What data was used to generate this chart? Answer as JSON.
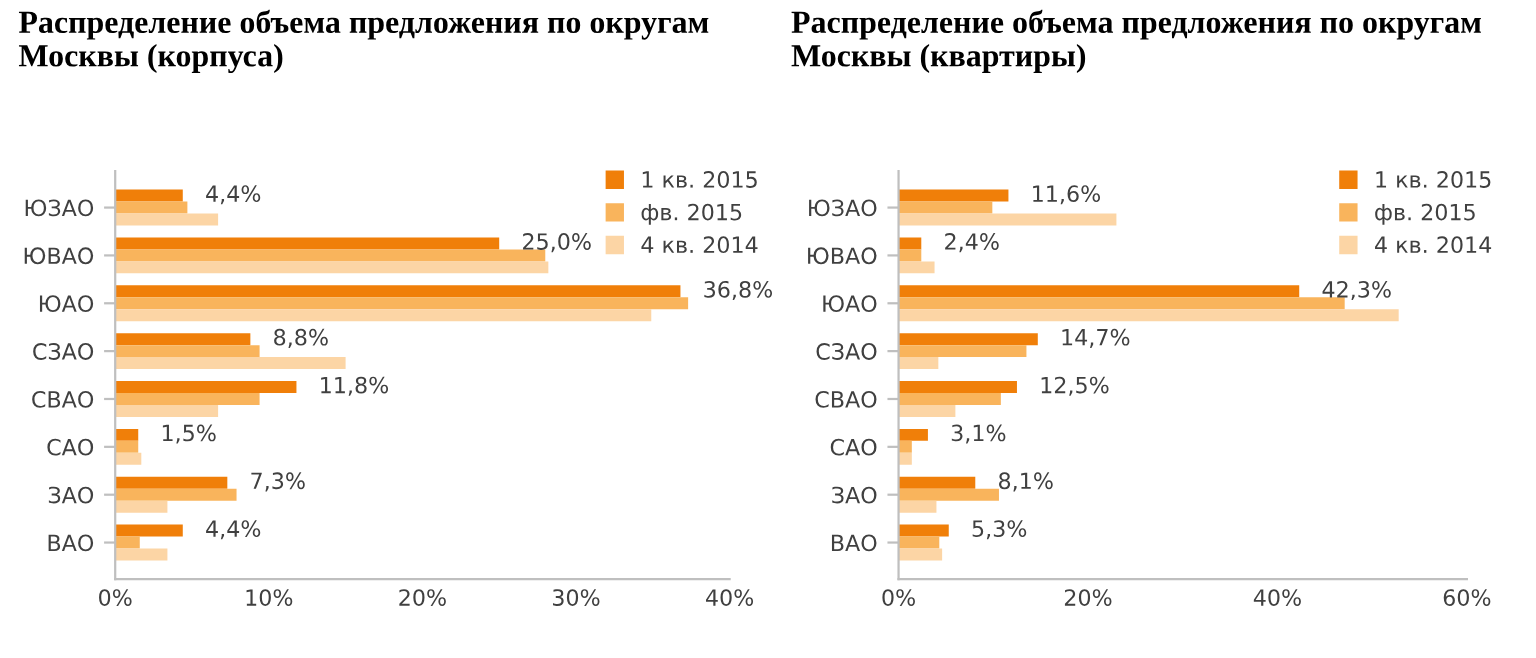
{
  "chart_data": [
    {
      "type": "bar",
      "orientation": "horizontal",
      "title": "Распределение объема предложения по округам Москвы (корпуса)",
      "categories": [
        "ЮЗАО",
        "ЮВАО",
        "ЮАО",
        "СЗАО",
        "СВАО",
        "САО",
        "ЗАО",
        "ВАО"
      ],
      "series": [
        {
          "name": "1 кв. 2015",
          "color": "#f07f09",
          "values": [
            4.4,
            25.0,
            36.8,
            8.8,
            11.8,
            1.5,
            7.3,
            4.4
          ],
          "value_labels": [
            "4,4%",
            "25,0%",
            "36,8%",
            "8,8%",
            "11,8%",
            "1,5%",
            "7,3%",
            "4,4%"
          ]
        },
        {
          "name": "фв. 2015",
          "color": "#f9b45c",
          "values": [
            4.7,
            28.0,
            37.3,
            9.4,
            9.4,
            1.5,
            7.9,
            1.6
          ]
        },
        {
          "name": "4 кв. 2014",
          "color": "#fcd5a5",
          "values": [
            6.7,
            28.2,
            34.9,
            15.0,
            6.7,
            1.7,
            3.4,
            3.4
          ]
        }
      ],
      "xlim": [
        0,
        40
      ],
      "xticks": [
        {
          "value": 0,
          "label": "0%"
        },
        {
          "value": 10,
          "label": "10%"
        },
        {
          "value": 20,
          "label": "20%"
        },
        {
          "value": 30,
          "label": "30%"
        },
        {
          "value": 40,
          "label": "40%"
        }
      ],
      "legend": "top right",
      "grid": false
    },
    {
      "type": "bar",
      "orientation": "horizontal",
      "title": "Распределение объема предложения по округам  Москвы (квартиры)",
      "categories": [
        "ЮЗАО",
        "ЮВАО",
        "ЮАО",
        "СЗАО",
        "СВАО",
        "САО",
        "ЗАО",
        "ВАО"
      ],
      "series": [
        {
          "name": "1 кв. 2015",
          "color": "#f07f09",
          "values": [
            11.6,
            2.4,
            42.3,
            14.7,
            12.5,
            3.1,
            8.1,
            5.3
          ],
          "value_labels": [
            "11,6%",
            "2,4%",
            "42,3%",
            "14,7%",
            "12,5%",
            "3,1%",
            "8,1%",
            "5,3%"
          ]
        },
        {
          "name": "фв. 2015",
          "color": "#f9b45c",
          "values": [
            9.9,
            2.4,
            47.1,
            13.5,
            10.8,
            1.4,
            10.6,
            4.3
          ]
        },
        {
          "name": "4 кв. 2014",
          "color": "#fcd5a5",
          "values": [
            23.0,
            3.8,
            52.8,
            4.2,
            6.0,
            1.4,
            4.0,
            4.6
          ]
        }
      ],
      "xlim": [
        0,
        60
      ],
      "xticks": [
        {
          "value": 0,
          "label": "0%"
        },
        {
          "value": 20,
          "label": "20%"
        },
        {
          "value": 40,
          "label": "40%"
        },
        {
          "value": 60,
          "label": "60%"
        }
      ],
      "legend": "top right",
      "grid": false
    }
  ]
}
